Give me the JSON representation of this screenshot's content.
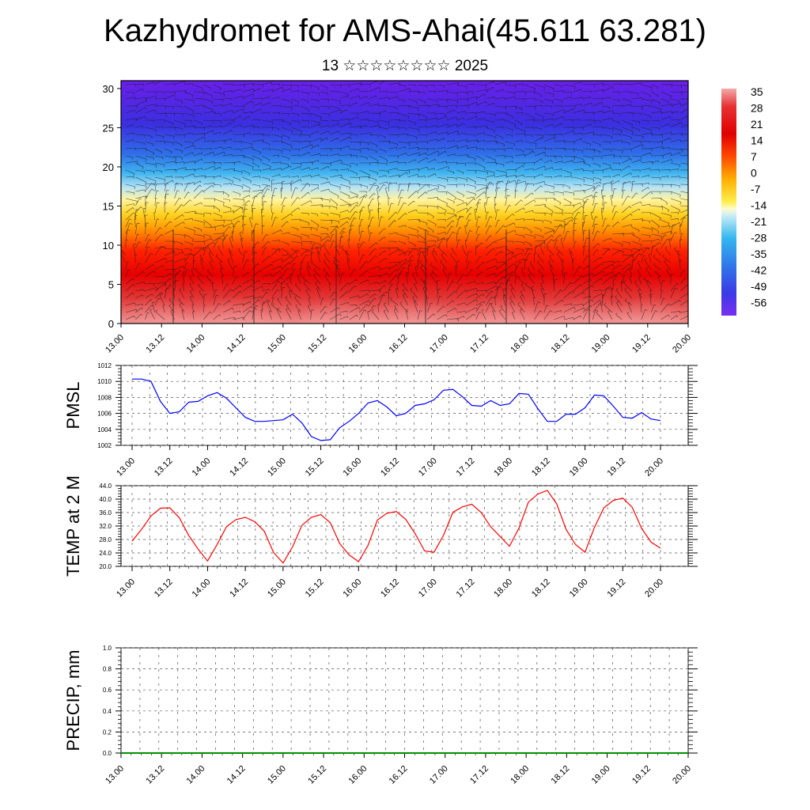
{
  "header": {
    "title": "Kazhydromet for AMS-Ahai(45.611 63.281)",
    "subtitle": "13 ☆☆☆☆☆☆☆☆ 2025"
  },
  "colorbar": {
    "labels": [
      "35",
      "28",
      "21",
      "14",
      "7",
      "0",
      "-7",
      "-14",
      "-21",
      "-28",
      "-35",
      "-42",
      "-49",
      "-56"
    ]
  },
  "chart_data": [
    {
      "type": "heatmap",
      "name": "cross-section",
      "x_ticks": [
        "13.00",
        "13.12",
        "14.00",
        "14.12",
        "15.00",
        "15.12",
        "16.00",
        "16.12",
        "17.00",
        "17.12",
        "18.00",
        "18.12",
        "19.00",
        "19.12",
        "20.00"
      ],
      "ylim": [
        0,
        31
      ],
      "y_ticks": [
        0,
        5,
        10,
        15,
        20,
        25,
        30
      ],
      "color_range": [
        -56,
        35
      ],
      "wind_vectors": true
    },
    {
      "type": "line",
      "ylabel": "PMSL",
      "ylim": [
        1002,
        1012
      ],
      "y_ticks": [
        "1002",
        "1004",
        "1006",
        "1008",
        "1010",
        "1012"
      ],
      "x_ticks": [
        "13.00",
        "13.12",
        "14.00",
        "14.12",
        "15.00",
        "15.12",
        "16.00",
        "16.12",
        "17.00",
        "17.12",
        "18.00",
        "18.12",
        "19.00",
        "19.12",
        "20.00"
      ],
      "color": "#0000ff",
      "grid": true,
      "values": [
        1010.3,
        1010.3,
        1010.0,
        1007.5,
        1006.0,
        1006.2,
        1007.4,
        1007.5,
        1008.2,
        1008.6,
        1007.9,
        1006.7,
        1005.5,
        1005.0,
        1005.0,
        1005.1,
        1005.2,
        1005.9,
        1004.8,
        1003.1,
        1002.6,
        1002.7,
        1004.2,
        1005.0,
        1006.0,
        1007.3,
        1007.6,
        1006.8,
        1005.7,
        1006.0,
        1007.0,
        1007.2,
        1007.7,
        1008.9,
        1009.0,
        1008.1,
        1007.0,
        1006.9,
        1007.6,
        1007.0,
        1007.2,
        1008.5,
        1008.4,
        1006.6,
        1005.0,
        1005.0,
        1005.9,
        1005.9,
        1006.7,
        1008.3,
        1008.2,
        1006.9,
        1005.5,
        1005.4,
        1006.1,
        1005.3,
        1005.1
      ]
    },
    {
      "type": "line",
      "ylabel": "TEMP at 2 M",
      "ylim": [
        20.0,
        44.0
      ],
      "y_ticks": [
        "20.0",
        "24.0",
        "28.0",
        "32.0",
        "36.0",
        "40.0",
        "44.0"
      ],
      "x_ticks": [
        "13.00",
        "13.12",
        "14.00",
        "14.12",
        "15.00",
        "15.12",
        "16.00",
        "16.12",
        "17.00",
        "17.12",
        "18.00",
        "18.12",
        "19.00",
        "19.12",
        "20.00"
      ],
      "color": "#ff0000",
      "grid": true,
      "values": [
        27.5,
        31.0,
        35.0,
        37.3,
        37.4,
        34.5,
        29.2,
        25.1,
        21.6,
        26.5,
        31.8,
        33.9,
        34.6,
        33.3,
        30.5,
        24.1,
        21.0,
        25.8,
        32.2,
        34.6,
        35.4,
        33.0,
        26.8,
        23.4,
        21.4,
        26.2,
        33.8,
        35.8,
        36.3,
        34.0,
        29.7,
        24.6,
        24.2,
        29.2,
        36.1,
        37.7,
        38.5,
        36.0,
        31.8,
        28.9,
        26.0,
        31.4,
        39.1,
        41.5,
        42.6,
        38.6,
        31.0,
        26.5,
        24.2,
        31.6,
        37.4,
        39.6,
        40.3,
        37.6,
        31.3,
        27.2,
        25.4
      ]
    },
    {
      "type": "line",
      "ylabel": "PRECIP, mm",
      "ylim": [
        0.0,
        1.0
      ],
      "y_ticks": [
        "0.0",
        "0.2",
        "0.4",
        "0.6",
        "0.8",
        "1.0"
      ],
      "x_ticks": [
        "13.00",
        "13.12",
        "14.00",
        "14.12",
        "15.00",
        "15.12",
        "16.00",
        "16.12",
        "17.00",
        "17.12",
        "18.00",
        "18.12",
        "19.00",
        "19.12",
        "20.00"
      ],
      "color": "#009000",
      "grid": true,
      "values": [
        0,
        0,
        0,
        0,
        0,
        0,
        0,
        0,
        0,
        0,
        0,
        0,
        0,
        0,
        0,
        0,
        0,
        0,
        0,
        0,
        0,
        0,
        0,
        0,
        0,
        0,
        0,
        0,
        0,
        0,
        0,
        0,
        0,
        0,
        0,
        0,
        0,
        0,
        0,
        0,
        0,
        0,
        0,
        0,
        0,
        0,
        0,
        0,
        0,
        0,
        0,
        0,
        0,
        0,
        0,
        0,
        0
      ]
    }
  ]
}
